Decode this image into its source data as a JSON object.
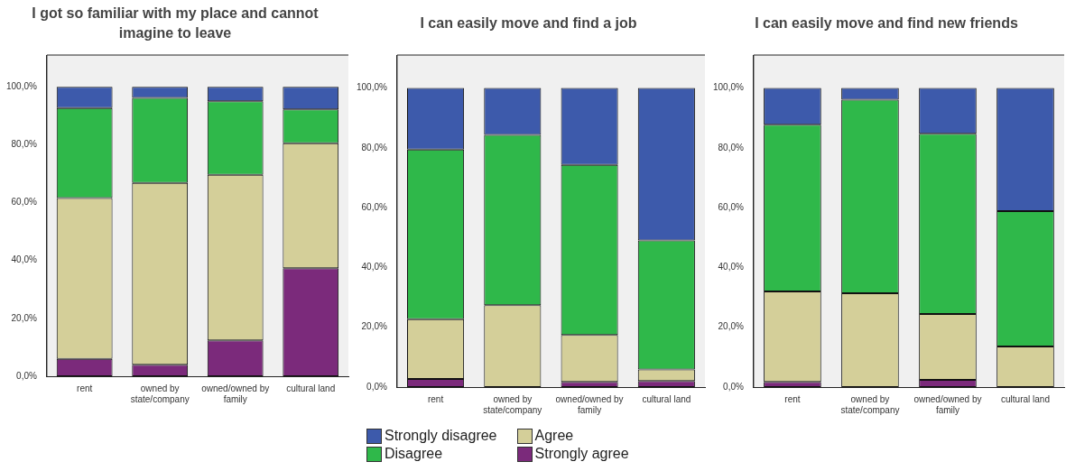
{
  "chart_data": [
    {
      "type": "bar",
      "title": "I got so familiar with my place and cannot imagine to leave",
      "categories": [
        "rent",
        "owned by state/company",
        "owned/owned by family",
        "cultural land"
      ],
      "stacked": true,
      "ylim": [
        0,
        111
      ],
      "yticks": [
        {
          "value": 0,
          "label": "0,0%"
        },
        {
          "value": 20,
          "label": "20,0%"
        },
        {
          "value": 40,
          "label": "40,0%"
        },
        {
          "value": 60,
          "label": "60,0%"
        },
        {
          "value": 80,
          "label": "80,0%"
        },
        {
          "value": 100,
          "label": "100,0%"
        }
      ],
      "grid": false,
      "series": [
        {
          "color": "#7b2a7b",
          "values": [
            6.0,
            4.0,
            12.4,
            37.3
          ]
        },
        {
          "color": "#d4cf99",
          "values": [
            55.6,
            62.8,
            57.2,
            43.2
          ]
        },
        {
          "color": "#2fb84a",
          "values": [
            31.1,
            29.4,
            25.4,
            11.7
          ]
        },
        {
          "color": "#3d5aab",
          "values": [
            7.3,
            3.8,
            5.0,
            7.8
          ]
        }
      ]
    },
    {
      "type": "bar",
      "title": "I can easily move and find a job",
      "categories": [
        "rent",
        "owned by state/company",
        "owned/owned by family",
        "cultural land"
      ],
      "stacked": true,
      "ylim": [
        0,
        111
      ],
      "yticks": [
        {
          "value": 0,
          "label": "0,0%"
        },
        {
          "value": 20,
          "label": "20,0%"
        },
        {
          "value": 40,
          "label": "40,0%"
        },
        {
          "value": 60,
          "label": "60,0%"
        },
        {
          "value": 80,
          "label": "80,0%"
        },
        {
          "value": 100,
          "label": "100,0%"
        }
      ],
      "grid": false,
      "legend": "bottom",
      "series": [
        {
          "name": "Strongly agree",
          "color": "#7b2a7b",
          "values": [
            2.7,
            0,
            1.7,
            2.0
          ]
        },
        {
          "name": "Agree",
          "color": "#d4cf99",
          "values": [
            20.0,
            27.4,
            15.7,
            3.9
          ]
        },
        {
          "name": "Disagree",
          "color": "#2fb84a",
          "values": [
            56.7,
            56.9,
            56.9,
            43.1
          ]
        },
        {
          "name": "Strongly disagree",
          "color": "#3d5aab",
          "values": [
            20.6,
            15.7,
            25.7,
            51.0
          ]
        }
      ]
    },
    {
      "type": "bar",
      "title": "I can easily move and find new friends",
      "categories": [
        "rent",
        "owned by state/company",
        "owned/owned by family",
        "cultural land"
      ],
      "stacked": true,
      "ylim": [
        0,
        111
      ],
      "yticks": [
        {
          "value": 0,
          "label": "0,0%"
        },
        {
          "value": 20,
          "label": "20,0%"
        },
        {
          "value": 40,
          "label": "40,0%"
        },
        {
          "value": 60,
          "label": "60,0%"
        },
        {
          "value": 80,
          "label": "80,0%"
        },
        {
          "value": 100,
          "label": "100,0%"
        }
      ],
      "grid": false,
      "series": [
        {
          "color": "#7b2a7b",
          "values": [
            1.7,
            0,
            2.4,
            0
          ]
        },
        {
          "color": "#d4cf99",
          "values": [
            30.3,
            31.4,
            22.0,
            13.6
          ]
        },
        {
          "color": "#2fb84a",
          "values": [
            55.7,
            64.7,
            60.3,
            45.2
          ]
        },
        {
          "color": "#3d5aab",
          "values": [
            12.3,
            3.9,
            15.3,
            41.2
          ]
        }
      ]
    }
  ]
}
